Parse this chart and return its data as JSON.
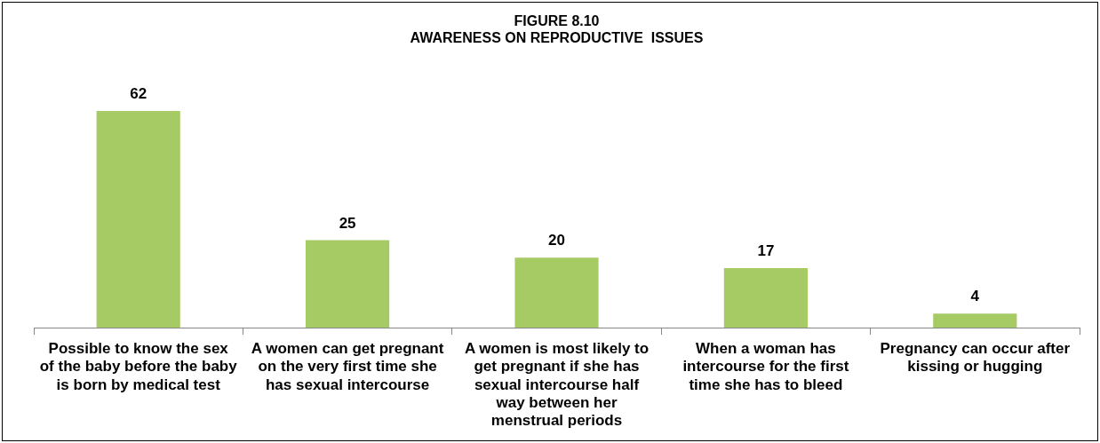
{
  "chart_data": {
    "type": "bar",
    "title": "FIGURE 8.10",
    "subtitle": "AWARENESS ON REPRODUCTIVE  ISSUES",
    "categories": [
      "Possible to know the sex of the baby before the baby is born by medical test",
      "A women can get pregnant on the very first time she has sexual intercourse",
      "A women is most likely to get pregnant if she has sexual intercourse half way between her menstrual periods",
      "When a woman has intercourse for the first time she has to bleed",
      "Pregnancy can occur after kissing or hugging"
    ],
    "values": [
      62,
      25,
      20,
      17,
      4
    ],
    "color": "#a6ca64",
    "data_labels": true,
    "grid": false,
    "legend": false
  }
}
